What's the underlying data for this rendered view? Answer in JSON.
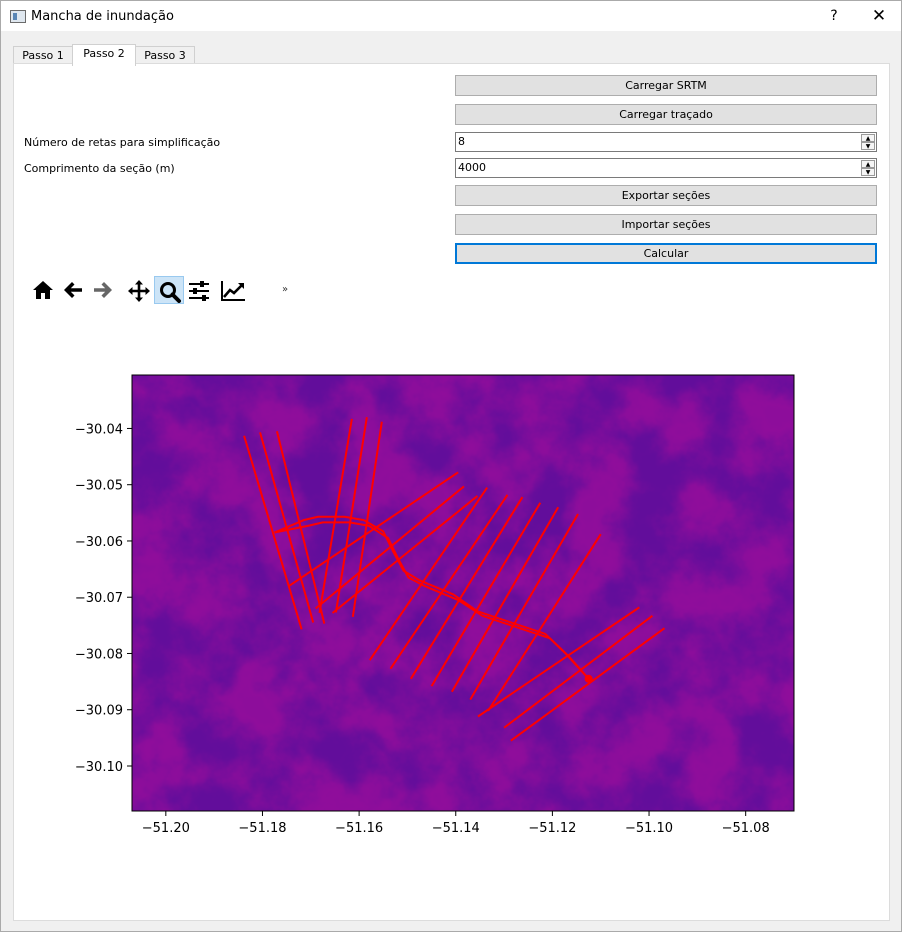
{
  "window": {
    "title": "Mancha de inundação",
    "help": "?",
    "close": "✕"
  },
  "tabs": [
    {
      "label": "Passo 1",
      "active": false
    },
    {
      "label": "Passo 2",
      "active": true
    },
    {
      "label": "Passo 3",
      "active": false
    }
  ],
  "buttons": {
    "load_srtm": "Carregar SRTM",
    "load_trace": "Carregar traçado",
    "export_sections": "Exportar seções",
    "import_sections": "Importar seções",
    "calculate": "Calcular"
  },
  "fields": {
    "num_lines_label": "Número de retas para simplificação",
    "num_lines_value": "8",
    "section_length_label": "Comprimento da seção (m)",
    "section_length_value": "4000"
  },
  "toolbar": {
    "tools": [
      "home-icon",
      "back-arrow-icon",
      "forward-arrow-icon",
      "pan-icon",
      "zoom-icon",
      "subplots-icon",
      "edit-curves-icon"
    ],
    "active_tool": "zoom-icon",
    "overflow": "»"
  },
  "colors": {
    "accent": "#0078d7",
    "section_lines": "#ff0000"
  },
  "chart_data": {
    "type": "heatmap",
    "colormap": "viridis",
    "xlim": [
      -51.207,
      -51.07
    ],
    "ylim": [
      -30.108,
      -30.0305
    ],
    "xticks": [
      -51.2,
      -51.18,
      -51.16,
      -51.14,
      -51.12,
      -51.1,
      -51.08
    ],
    "yticks": [
      -30.04,
      -30.05,
      -30.06,
      -30.07,
      -30.08,
      -30.09,
      -30.1
    ],
    "xtick_labels": [
      "−51.20",
      "−51.18",
      "−51.16",
      "−51.14",
      "−51.12",
      "−51.10",
      "−51.08"
    ],
    "ytick_labels": [
      "−30.04",
      "−30.05",
      "−30.06",
      "−30.07",
      "−30.08",
      "−30.09",
      "−30.10"
    ],
    "river": [
      [
        [
          -51.1775,
          -30.0585
        ],
        [
          -51.1715,
          -30.0563
        ],
        [
          -51.1685,
          -30.0557
        ],
        [
          -51.163,
          -30.0557
        ],
        [
          -51.159,
          -30.0563
        ],
        [
          -51.155,
          -30.0583
        ],
        [
          -51.153,
          -30.0618
        ],
        [
          -51.1508,
          -30.0653
        ],
        [
          -51.1475,
          -30.067
        ],
        [
          -51.1405,
          -30.0695
        ],
        [
          -51.1355,
          -30.0725
        ],
        [
          -51.1285,
          -30.0745
        ],
        [
          -51.1215,
          -30.0765
        ],
        [
          -51.1175,
          -30.0798
        ],
        [
          -51.1125,
          -30.0845
        ]
      ],
      [
        [
          -51.1775,
          -30.0585
        ],
        [
          -51.1705,
          -30.0573
        ],
        [
          -51.1675,
          -30.0567
        ],
        [
          -51.162,
          -30.0567
        ],
        [
          -51.158,
          -30.0573
        ],
        [
          -51.154,
          -30.0595
        ],
        [
          -51.152,
          -30.063
        ],
        [
          -51.1498,
          -30.0665
        ],
        [
          -51.1465,
          -30.068
        ],
        [
          -51.1395,
          -30.0705
        ],
        [
          -51.1345,
          -30.0733
        ],
        [
          -51.1275,
          -30.0753
        ],
        [
          -51.1205,
          -30.0773
        ],
        [
          -51.1165,
          -30.0806
        ],
        [
          -51.1125,
          -30.0845
        ]
      ]
    ],
    "end_marker": [
      -51.1125,
      -30.0845
    ],
    "sections": [
      [
        [
          -51.1838,
          -30.0413
        ],
        [
          -51.1719,
          -30.0757
        ]
      ],
      [
        [
          -51.1805,
          -30.0407
        ],
        [
          -51.1695,
          -30.0745
        ]
      ],
      [
        [
          -51.177,
          -30.0405
        ],
        [
          -51.1672,
          -30.0747
        ]
      ],
      [
        [
          -51.1615,
          -30.0383
        ],
        [
          -51.1682,
          -30.0728
        ]
      ],
      [
        [
          -51.1584,
          -30.038
        ],
        [
          -51.1648,
          -30.0727
        ]
      ],
      [
        [
          -51.1553,
          -30.0388
        ],
        [
          -51.1613,
          -30.0735
        ]
      ],
      [
        [
          -51.1745,
          -30.068
        ],
        [
          -51.1395,
          -30.0478
        ]
      ],
      [
        [
          -51.169,
          -30.072
        ],
        [
          -51.1383,
          -30.0503
        ]
      ],
      [
        [
          -51.1655,
          -30.0728
        ],
        [
          -51.1355,
          -30.052
        ]
      ],
      [
        [
          -51.1578,
          -30.0812
        ],
        [
          -51.1335,
          -30.0505
        ]
      ],
      [
        [
          -51.1535,
          -30.0827
        ],
        [
          -51.1293,
          -30.0518
        ]
      ],
      [
        [
          -51.1493,
          -30.0845
        ],
        [
          -51.1262,
          -30.0522
        ]
      ],
      [
        [
          -51.145,
          -30.0858
        ],
        [
          -51.1225,
          -30.0532
        ]
      ],
      [
        [
          -51.1408,
          -30.0868
        ],
        [
          -51.1188,
          -30.054
        ]
      ],
      [
        [
          -51.137,
          -30.0882
        ],
        [
          -51.1147,
          -30.0552
        ]
      ],
      [
        [
          -51.1333,
          -30.0902
        ],
        [
          -51.11,
          -30.0588
        ]
      ],
      [
        [
          -51.1354,
          -30.0912
        ],
        [
          -51.102,
          -30.0718
        ]
      ],
      [
        [
          -51.13,
          -30.0932
        ],
        [
          -51.0993,
          -30.0733
        ]
      ],
      [
        [
          -51.1286,
          -30.0955
        ],
        [
          -51.0968,
          -30.0755
        ]
      ]
    ]
  }
}
